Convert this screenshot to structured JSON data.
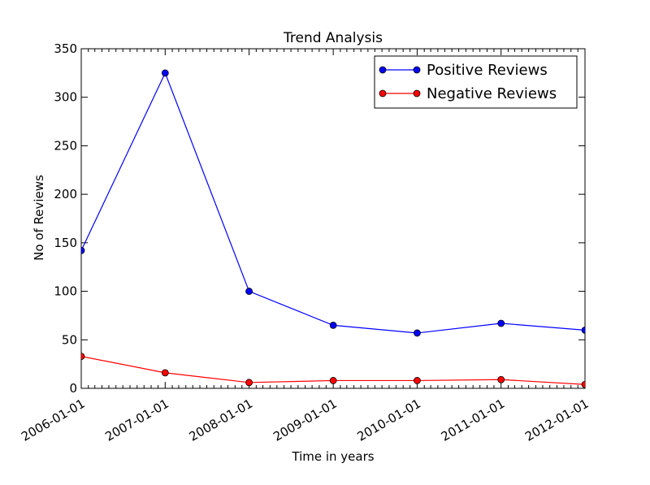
{
  "chart_data": {
    "type": "line",
    "title": "Trend Analysis",
    "xlabel": "Time in years",
    "ylabel": "No of Reviews",
    "x_ticks": [
      "2006-01-01",
      "2007-01-01",
      "2008-01-01",
      "2009-01-01",
      "2010-01-01",
      "2011-01-01",
      "2012-01-01"
    ],
    "y_ticks": [
      "0",
      "50",
      "100",
      "150",
      "200",
      "250",
      "300",
      "350"
    ],
    "ylim": [
      0,
      350
    ],
    "xlim": [
      "2006-01-01",
      "2012-01-01"
    ],
    "x": [
      "2006-01-01",
      "2007-01-01",
      "2008-01-01",
      "2009-01-01",
      "2010-01-01",
      "2011-01-01",
      "2012-01-01"
    ],
    "series": [
      {
        "name": "Positive Reviews",
        "color": "#0000ff",
        "values": [
          142,
          325,
          100,
          65,
          57,
          67,
          60
        ]
      },
      {
        "name": "Negative Reviews",
        "color": "#ff0000",
        "values": [
          33,
          16,
          6,
          8,
          8,
          9,
          4
        ]
      }
    ],
    "legend": "top-right",
    "grid": false
  }
}
